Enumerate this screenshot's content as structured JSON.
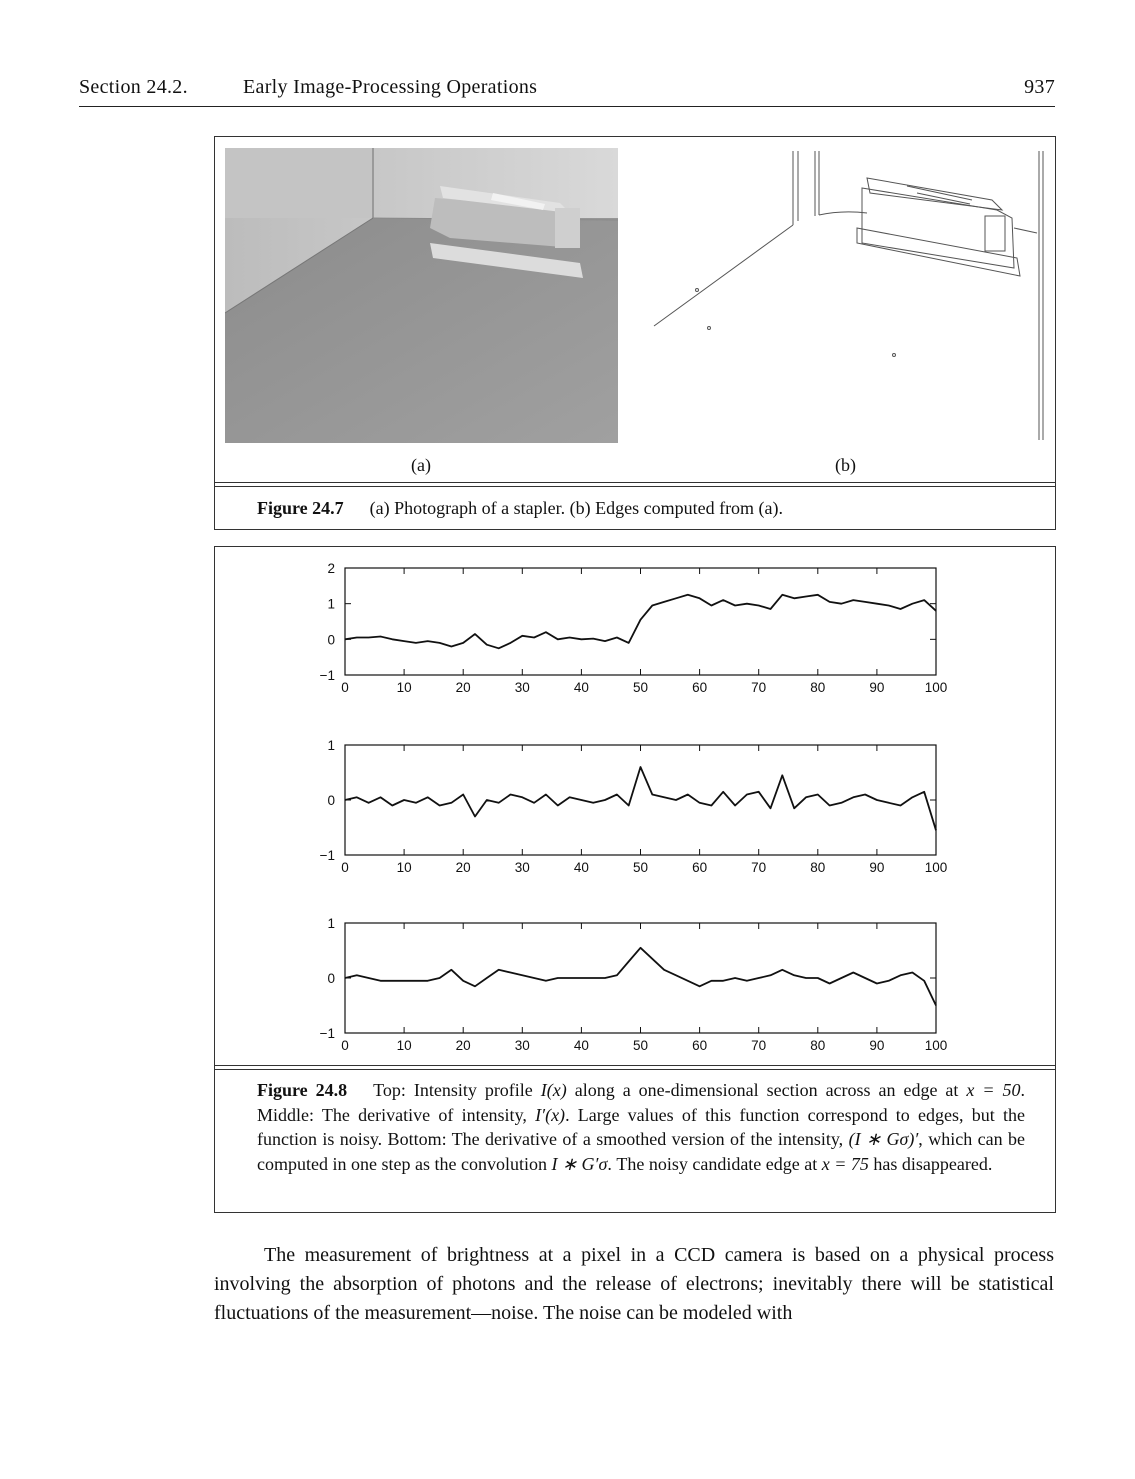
{
  "header": {
    "section": "Section 24.2.",
    "title": "Early Image-Processing Operations",
    "page_number": "937"
  },
  "figure_24_7": {
    "label_a": "(a)",
    "label_b": "(b)",
    "number": "Figure 24.7",
    "caption": "(a) Photograph of a stapler. (b) Edges computed from (a)."
  },
  "figure_24_8": {
    "number": "Figure 24.8",
    "caption_parts": {
      "p1": "Top: Intensity profile ",
      "m1": "I(x)",
      "p2": " along a one-dimensional section across an edge at ",
      "m2": "x = 50",
      "p3": ". Middle: The derivative of intensity, ",
      "m3": "I′(x)",
      "p4": ". Large values of this function correspond to edges, but the function is noisy. Bottom: The derivative of a smoothed version of the intensity, ",
      "m4": "(I ∗ Gσ)′",
      "p5": ", which can be computed in one step as the convolution ",
      "m5": "I ∗ G′σ",
      "p6": ". The noisy candidate edge at ",
      "m6": "x = 75",
      "p7": " has disappeared."
    }
  },
  "chart_data": [
    {
      "type": "line",
      "x": [
        0,
        2,
        4,
        6,
        8,
        10,
        12,
        14,
        16,
        18,
        20,
        22,
        24,
        26,
        28,
        30,
        32,
        34,
        36,
        38,
        40,
        42,
        44,
        46,
        48,
        50,
        52,
        54,
        56,
        58,
        60,
        62,
        64,
        66,
        68,
        70,
        72,
        74,
        76,
        78,
        80,
        82,
        84,
        86,
        88,
        90,
        92,
        94,
        96,
        98,
        100
      ],
      "series": [
        {
          "values": [
            0,
            0.05,
            0.05,
            0.08,
            0.0,
            -0.05,
            -0.1,
            -0.05,
            -0.1,
            -0.2,
            -0.1,
            0.15,
            -0.15,
            -0.25,
            -0.1,
            0.1,
            0.05,
            0.2,
            0.0,
            0.05,
            0.0,
            0.02,
            -0.05,
            0.05,
            -0.1,
            0.55,
            0.95,
            1.05,
            1.15,
            1.25,
            1.15,
            0.95,
            1.1,
            0.95,
            1.0,
            0.95,
            0.85,
            1.25,
            1.15,
            1.2,
            1.25,
            1.05,
            1.0,
            1.1,
            1.05,
            1.0,
            0.95,
            0.85,
            1.0,
            1.1,
            0.8
          ]
        }
      ],
      "ylim": [
        -1,
        2
      ],
      "xlim": [
        0,
        100
      ],
      "yticks": [
        "2",
        "1",
        "0",
        "−1"
      ],
      "xticks": [
        "0",
        "10",
        "20",
        "30",
        "40",
        "50",
        "60",
        "70",
        "80",
        "90",
        "100"
      ]
    },
    {
      "type": "line",
      "x": [
        0,
        2,
        4,
        6,
        8,
        10,
        12,
        14,
        16,
        18,
        20,
        22,
        24,
        26,
        28,
        30,
        32,
        34,
        36,
        38,
        40,
        42,
        44,
        46,
        48,
        50,
        52,
        54,
        56,
        58,
        60,
        62,
        64,
        66,
        68,
        70,
        72,
        74,
        76,
        78,
        80,
        82,
        84,
        86,
        88,
        90,
        92,
        94,
        96,
        98,
        100
      ],
      "series": [
        {
          "values": [
            0,
            0.05,
            -0.05,
            0.05,
            -0.1,
            0.0,
            -0.05,
            0.05,
            -0.1,
            -0.05,
            0.1,
            -0.3,
            0.0,
            -0.05,
            0.1,
            0.05,
            -0.05,
            0.1,
            -0.1,
            0.05,
            0.0,
            -0.05,
            0.0,
            0.1,
            -0.1,
            0.6,
            0.1,
            0.05,
            0.0,
            0.1,
            -0.05,
            -0.1,
            0.15,
            -0.1,
            0.1,
            0.15,
            -0.15,
            0.45,
            -0.15,
            0.05,
            0.1,
            -0.1,
            -0.05,
            0.05,
            0.1,
            0.0,
            -0.05,
            -0.1,
            0.05,
            0.15,
            -0.55
          ]
        }
      ],
      "ylim": [
        -1,
        1
      ],
      "xlim": [
        0,
        100
      ],
      "yticks": [
        "1",
        "0",
        "−1"
      ],
      "xticks": [
        "0",
        "10",
        "20",
        "30",
        "40",
        "50",
        "60",
        "70",
        "80",
        "90",
        "100"
      ]
    },
    {
      "type": "line",
      "x": [
        0,
        2,
        4,
        6,
        8,
        10,
        12,
        14,
        16,
        18,
        20,
        22,
        24,
        26,
        28,
        30,
        32,
        34,
        36,
        38,
        40,
        42,
        44,
        46,
        48,
        50,
        52,
        54,
        56,
        58,
        60,
        62,
        64,
        66,
        68,
        70,
        72,
        74,
        76,
        78,
        80,
        82,
        84,
        86,
        88,
        90,
        92,
        94,
        96,
        98,
        100
      ],
      "series": [
        {
          "values": [
            0,
            0.05,
            0.0,
            -0.05,
            -0.05,
            -0.05,
            -0.05,
            -0.05,
            0.0,
            0.15,
            -0.05,
            -0.15,
            0.0,
            0.15,
            0.1,
            0.05,
            0.0,
            -0.05,
            0.0,
            0.0,
            0.0,
            0.0,
            0.0,
            0.05,
            0.3,
            0.55,
            0.35,
            0.15,
            0.05,
            -0.05,
            -0.15,
            -0.05,
            -0.05,
            0.0,
            -0.05,
            0.0,
            0.05,
            0.15,
            0.05,
            0.0,
            0.0,
            -0.1,
            0.0,
            0.1,
            0.0,
            -0.1,
            -0.05,
            0.05,
            0.1,
            -0.05,
            -0.5
          ]
        }
      ],
      "ylim": [
        -1,
        1
      ],
      "xlim": [
        0,
        100
      ],
      "yticks": [
        "1",
        "0",
        "−1"
      ],
      "xticks": [
        "0",
        "10",
        "20",
        "30",
        "40",
        "50",
        "60",
        "70",
        "80",
        "90",
        "100"
      ]
    }
  ],
  "body": {
    "paragraph": "The measurement of brightness at a pixel in a CCD camera is based on a physical process involving the absorption of photons and the release of electrons; inevitably there will be statistical fluctuations of the measurement—noise. The noise can be modeled with"
  }
}
